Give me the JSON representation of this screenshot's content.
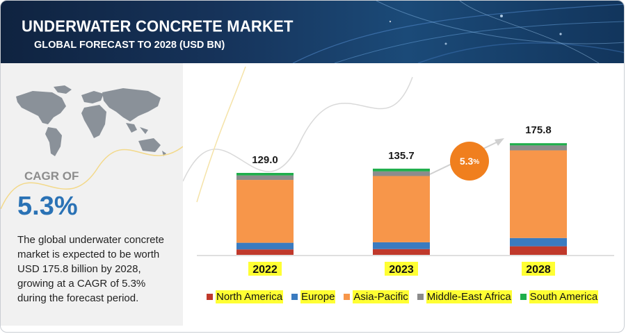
{
  "header": {
    "title": "UNDERWATER CONCRETE MARKET",
    "subtitle": "GLOBAL FORECAST TO 2028 (USD BN)"
  },
  "summary": {
    "cagr_label": "CAGR OF",
    "cagr_value": "5.3%",
    "description": "The global underwater concrete market is expected to be worth USD 175.8 billion by 2028, growing at a CAGR of 5.3% during the forecast period."
  },
  "bubble": {
    "value": "5.3",
    "pct": "%"
  },
  "colors": {
    "north_america": "#c0392b",
    "europe": "#3a7bc0",
    "asia_pacific": "#f7964a",
    "middle_east_africa": "#8c8c8c",
    "south_america": "#1fae4b",
    "year_highlight": "#ffff33",
    "accent": "#f07f1e",
    "banner": "#16335a"
  },
  "chart_data": {
    "type": "bar",
    "stacked": true,
    "categories": [
      "2022",
      "2023",
      "2028"
    ],
    "totals": [
      "129.0",
      "135.7",
      "175.8"
    ],
    "series": [
      {
        "name": "North America",
        "values": [
          8.5,
          9.0,
          13.5
        ]
      },
      {
        "name": "Europe",
        "values": [
          10.5,
          10.8,
          13.0
        ]
      },
      {
        "name": "Asia-Pacific",
        "values": [
          99.0,
          104.3,
          138.0
        ]
      },
      {
        "name": "Middle-East Africa",
        "values": [
          7.0,
          7.3,
          7.8
        ]
      },
      {
        "name": "South America",
        "values": [
          4.0,
          4.3,
          3.5
        ]
      }
    ],
    "legend_position": "bottom",
    "grid": false
  }
}
